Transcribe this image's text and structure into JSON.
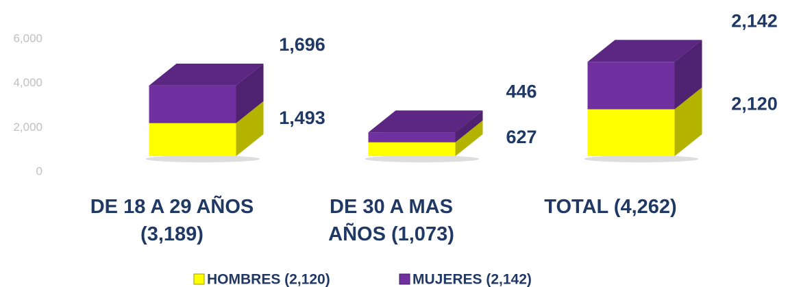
{
  "chart_data": {
    "type": "stacked-bar-3d",
    "categories": [
      "DE 18 A 29 AÑOS (3,189)",
      "DE 30 A MAS AÑOS (1,073)",
      "TOTAL (4,262)"
    ],
    "series": [
      {
        "name": "HOMBRES (2,120)",
        "color": "#ffff00",
        "values": [
          1493,
          627,
          2120
        ],
        "value_labels": [
          "1,493",
          "627",
          "2,120"
        ]
      },
      {
        "name": "MUJERES (2,142)",
        "color": "#7030a0",
        "values": [
          1696,
          446,
          2142
        ],
        "value_labels": [
          "1,696",
          "446",
          "2,142"
        ]
      }
    ],
    "ylim": [
      0,
      6000
    ],
    "yticks": [
      0,
      {
        "value": 2000,
        "label": "2,000"
      },
      {
        "value": 4000,
        "label": "4,000"
      },
      {
        "value": 6000,
        "label": "6,000"
      }
    ],
    "legend": "bottom"
  }
}
